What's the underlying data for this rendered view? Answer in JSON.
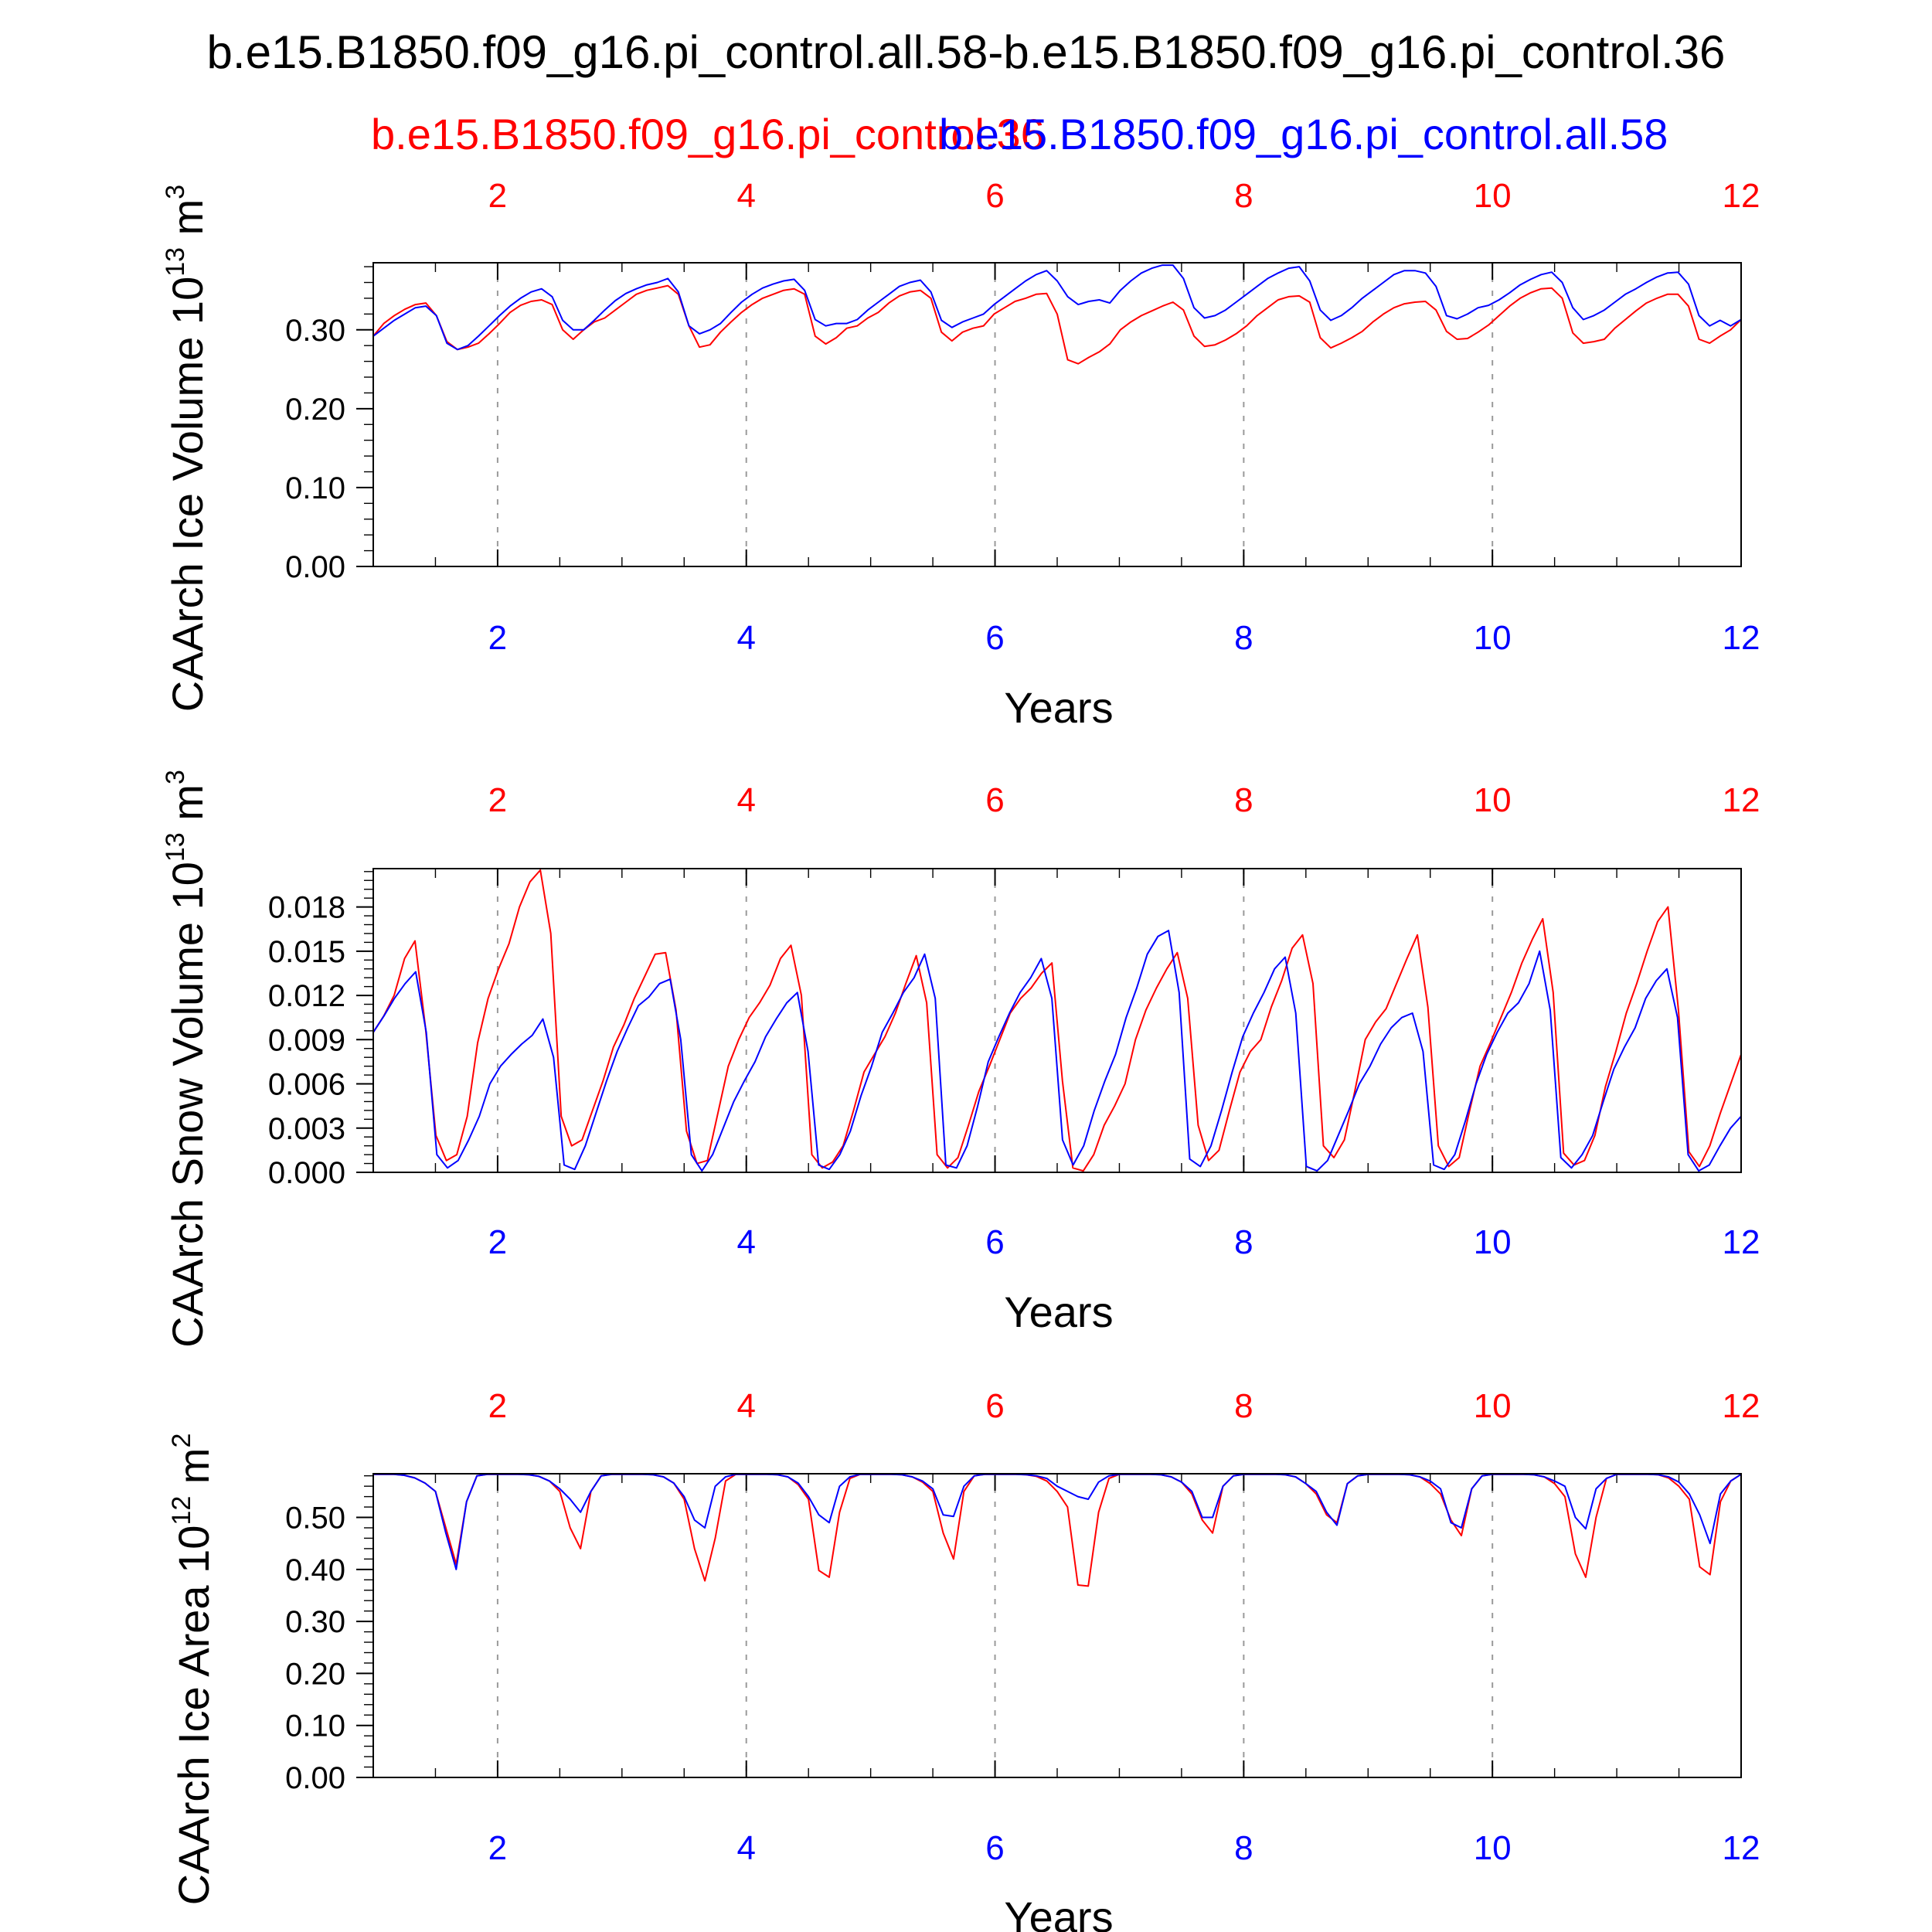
{
  "figure": {
    "title": "b.e15.B1850.f09_g16.pi_control.all.58-b.e15.B1850.f09_g16.pi_control.36",
    "legend": [
      {
        "name": "b.e15.B1850.f09_g16.pi_control.36",
        "color": "#ff0000"
      },
      {
        "name": "b.e15.B1850.f09_g16.pi_control.all.58",
        "color": "#0000ff"
      }
    ]
  },
  "chart_data": [
    {
      "type": "line",
      "xlabel": "Years",
      "ylabel": "CAArch Ice Volume",
      "yunit": {
        "prefix": "10",
        "exp": "13",
        "unit": "m",
        "unit_exp": "3"
      },
      "xlim": [
        1,
        12
      ],
      "ylim": [
        0,
        0.385
      ],
      "x_ticks": [
        2,
        4,
        6,
        8,
        10,
        12
      ],
      "x_tick_labels": [
        "2",
        "4",
        "6",
        "8",
        "10",
        "12"
      ],
      "y_ticks": [
        0,
        0.1,
        0.2,
        0.3
      ],
      "y_tick_labels": [
        "0.00",
        "0.10",
        "0.20",
        "0.30"
      ],
      "grid": "x dashed",
      "series": [
        {
          "name": "b.e15.B1850.f09_g16.pi_control.36",
          "color": "#ff0000",
          "values": [
            0.292,
            0.308,
            0.318,
            0.326,
            0.332,
            0.334,
            0.318,
            0.285,
            0.275,
            0.278,
            0.283,
            0.295,
            0.308,
            0.322,
            0.331,
            0.336,
            0.338,
            0.332,
            0.3,
            0.288,
            0.3,
            0.31,
            0.315,
            0.325,
            0.335,
            0.345,
            0.35,
            0.353,
            0.356,
            0.345,
            0.305,
            0.278,
            0.281,
            0.297,
            0.31,
            0.322,
            0.332,
            0.34,
            0.345,
            0.35,
            0.352,
            0.345,
            0.292,
            0.282,
            0.29,
            0.302,
            0.305,
            0.315,
            0.322,
            0.334,
            0.343,
            0.348,
            0.35,
            0.34,
            0.297,
            0.286,
            0.297,
            0.302,
            0.305,
            0.32,
            0.328,
            0.336,
            0.34,
            0.345,
            0.346,
            0.32,
            0.262,
            0.257,
            0.265,
            0.272,
            0.282,
            0.3,
            0.31,
            0.318,
            0.324,
            0.33,
            0.335,
            0.325,
            0.292,
            0.279,
            0.281,
            0.287,
            0.295,
            0.305,
            0.318,
            0.328,
            0.338,
            0.342,
            0.343,
            0.335,
            0.29,
            0.277,
            0.283,
            0.29,
            0.298,
            0.31,
            0.32,
            0.328,
            0.333,
            0.335,
            0.336,
            0.325,
            0.298,
            0.288,
            0.289,
            0.297,
            0.306,
            0.318,
            0.33,
            0.34,
            0.347,
            0.352,
            0.353,
            0.34,
            0.296,
            0.283,
            0.285,
            0.288,
            0.302,
            0.313,
            0.324,
            0.334,
            0.34,
            0.345,
            0.345,
            0.33,
            0.288,
            0.283,
            0.292,
            0.3,
            0.313
          ]
        },
        {
          "name": "b.e15.B1850.f09_g16.pi_control.all.58",
          "color": "#0000ff",
          "values": [
            0.292,
            0.302,
            0.312,
            0.32,
            0.328,
            0.33,
            0.318,
            0.283,
            0.275,
            0.28,
            0.292,
            0.305,
            0.318,
            0.33,
            0.34,
            0.348,
            0.352,
            0.342,
            0.312,
            0.3,
            0.3,
            0.312,
            0.325,
            0.337,
            0.346,
            0.352,
            0.357,
            0.36,
            0.365,
            0.348,
            0.305,
            0.295,
            0.3,
            0.308,
            0.322,
            0.335,
            0.345,
            0.353,
            0.358,
            0.362,
            0.364,
            0.35,
            0.313,
            0.305,
            0.308,
            0.308,
            0.313,
            0.325,
            0.335,
            0.345,
            0.355,
            0.36,
            0.363,
            0.348,
            0.312,
            0.303,
            0.31,
            0.315,
            0.32,
            0.332,
            0.342,
            0.352,
            0.362,
            0.37,
            0.375,
            0.362,
            0.342,
            0.332,
            0.336,
            0.338,
            0.334,
            0.35,
            0.362,
            0.372,
            0.378,
            0.382,
            0.382,
            0.365,
            0.328,
            0.315,
            0.318,
            0.325,
            0.335,
            0.345,
            0.355,
            0.365,
            0.372,
            0.378,
            0.38,
            0.362,
            0.325,
            0.312,
            0.318,
            0.328,
            0.34,
            0.35,
            0.36,
            0.37,
            0.375,
            0.375,
            0.372,
            0.355,
            0.318,
            0.314,
            0.32,
            0.328,
            0.331,
            0.338,
            0.347,
            0.357,
            0.364,
            0.37,
            0.373,
            0.36,
            0.328,
            0.313,
            0.318,
            0.325,
            0.335,
            0.345,
            0.352,
            0.36,
            0.367,
            0.372,
            0.373,
            0.358,
            0.318,
            0.305,
            0.312,
            0.305,
            0.313
          ]
        }
      ]
    },
    {
      "type": "line",
      "xlabel": "Years",
      "ylabel": "CAArch Snow Volume",
      "yunit": {
        "prefix": "10",
        "exp": "13",
        "unit": "m",
        "unit_exp": "3"
      },
      "xlim": [
        1,
        12
      ],
      "ylim": [
        0,
        0.0206
      ],
      "x_ticks": [
        2,
        4,
        6,
        8,
        10,
        12
      ],
      "x_tick_labels": [
        "2",
        "4",
        "6",
        "8",
        "10",
        "12"
      ],
      "y_ticks": [
        0,
        0.003,
        0.006,
        0.009,
        0.012,
        0.015,
        0.018
      ],
      "y_tick_labels": [
        "0.000",
        "0.003",
        "0.006",
        "0.009",
        "0.012",
        "0.015",
        "0.018"
      ],
      "grid": "x dashed",
      "series": [
        {
          "name": "b.e15.B1850.f09_g16.pi_control.36",
          "color": "#ff0000",
          "values": [
            0.0095,
            0.0106,
            0.012,
            0.0145,
            0.0157,
            0.0098,
            0.0025,
            0.0008,
            0.0012,
            0.0038,
            0.0088,
            0.0118,
            0.0138,
            0.0155,
            0.018,
            0.0197,
            0.0205,
            0.0162,
            0.0038,
            0.0018,
            0.0022,
            0.0042,
            0.0062,
            0.0085,
            0.01,
            0.0118,
            0.0133,
            0.0148,
            0.0149,
            0.011,
            0.0028,
            0.0006,
            0.0008,
            0.004,
            0.0072,
            0.009,
            0.0105,
            0.0115,
            0.0127,
            0.0145,
            0.0154,
            0.012,
            0.0012,
            0.0003,
            0.0007,
            0.0018,
            0.0042,
            0.0068,
            0.008,
            0.0092,
            0.0108,
            0.0128,
            0.0147,
            0.0115,
            0.0012,
            0.0003,
            0.001,
            0.0032,
            0.0055,
            0.0072,
            0.009,
            0.0108,
            0.0118,
            0.0125,
            0.0135,
            0.0142,
            0.0062,
            0.0003,
            0.0001,
            0.0012,
            0.0032,
            0.0045,
            0.006,
            0.009,
            0.011,
            0.0125,
            0.0138,
            0.0149,
            0.0118,
            0.0032,
            0.0008,
            0.0015,
            0.0042,
            0.0068,
            0.0082,
            0.009,
            0.0112,
            0.013,
            0.0152,
            0.0161,
            0.0128,
            0.0018,
            0.001,
            0.0022,
            0.0055,
            0.009,
            0.0102,
            0.0111,
            0.0128,
            0.0145,
            0.0161,
            0.0112,
            0.0018,
            0.0004,
            0.001,
            0.0042,
            0.0072,
            0.0088,
            0.0105,
            0.0122,
            0.0142,
            0.0158,
            0.0172,
            0.0122,
            0.0013,
            0.0005,
            0.0008,
            0.0025,
            0.0058,
            0.0082,
            0.0108,
            0.0128,
            0.015,
            0.017,
            0.018,
            0.011,
            0.0014,
            0.0004,
            0.0018,
            0.004,
            0.006,
            0.008
          ]
        },
        {
          "name": "b.e15.B1850.f09_g16.pi_control.all.58",
          "color": "#0000ff",
          "values": [
            0.0095,
            0.0106,
            0.0118,
            0.0128,
            0.0136,
            0.0095,
            0.0012,
            0.0003,
            0.0008,
            0.0022,
            0.0038,
            0.006,
            0.0072,
            0.008,
            0.0087,
            0.0093,
            0.0104,
            0.0078,
            0.0005,
            0.0002,
            0.0018,
            0.004,
            0.0062,
            0.0082,
            0.0098,
            0.0113,
            0.0119,
            0.0128,
            0.0131,
            0.009,
            0.0012,
            0.0001,
            0.0012,
            0.003,
            0.0048,
            0.0062,
            0.0075,
            0.0092,
            0.0104,
            0.0115,
            0.0122,
            0.0082,
            0.0005,
            0.0002,
            0.0012,
            0.0028,
            0.0052,
            0.0072,
            0.0095,
            0.0108,
            0.0122,
            0.0132,
            0.0148,
            0.0118,
            0.0005,
            0.0003,
            0.0018,
            0.0045,
            0.0075,
            0.0092,
            0.0108,
            0.0122,
            0.0132,
            0.0145,
            0.0118,
            0.0022,
            0.0005,
            0.0018,
            0.0042,
            0.0062,
            0.008,
            0.0105,
            0.0125,
            0.0148,
            0.016,
            0.0164,
            0.0122,
            0.0009,
            0.0004,
            0.0018,
            0.0042,
            0.0068,
            0.0092,
            0.0108,
            0.0122,
            0.0138,
            0.0146,
            0.0108,
            0.0004,
            0.0001,
            0.0008,
            0.0025,
            0.0042,
            0.006,
            0.0072,
            0.0087,
            0.0098,
            0.0105,
            0.0108,
            0.0082,
            0.0005,
            0.0002,
            0.0012,
            0.0035,
            0.006,
            0.008,
            0.0095,
            0.0108,
            0.0115,
            0.0128,
            0.015,
            0.011,
            0.001,
            0.0003,
            0.0012,
            0.0025,
            0.0048,
            0.007,
            0.0085,
            0.0098,
            0.0118,
            0.013,
            0.0138,
            0.0105,
            0.0012,
            0.0001,
            0.0005,
            0.0018,
            0.003,
            0.0038
          ]
        }
      ]
    },
    {
      "type": "line",
      "xlabel": "Years",
      "ylabel": "CAArch Ice Area",
      "yunit": {
        "prefix": "10",
        "exp": "12",
        "unit": "m",
        "unit_exp": "2"
      },
      "xlim": [
        1,
        12
      ],
      "ylim": [
        0,
        0.584
      ],
      "x_ticks": [
        2,
        4,
        6,
        8,
        10,
        12
      ],
      "x_tick_labels": [
        "2",
        "4",
        "6",
        "8",
        "10",
        "12"
      ],
      "y_ticks": [
        0,
        0.1,
        0.2,
        0.3,
        0.4,
        0.5
      ],
      "y_tick_labels": [
        "0.00",
        "0.10",
        "0.20",
        "0.30",
        "0.40",
        "0.50"
      ],
      "grid": "x dashed",
      "series": [
        {
          "name": "b.e15.B1850.f09_g16.pi_control.36",
          "color": "#ff0000",
          "values": [
            0.583,
            0.583,
            0.583,
            0.581,
            0.576,
            0.566,
            0.55,
            0.48,
            0.41,
            0.53,
            0.58,
            0.583,
            0.583,
            0.583,
            0.583,
            0.582,
            0.579,
            0.57,
            0.55,
            0.48,
            0.44,
            0.55,
            0.58,
            0.583,
            0.583,
            0.583,
            0.583,
            0.582,
            0.578,
            0.566,
            0.535,
            0.44,
            0.378,
            0.46,
            0.57,
            0.583,
            0.583,
            0.583,
            0.583,
            0.582,
            0.578,
            0.563,
            0.535,
            0.398,
            0.385,
            0.51,
            0.575,
            0.583,
            0.583,
            0.583,
            0.583,
            0.582,
            0.578,
            0.568,
            0.55,
            0.47,
            0.42,
            0.55,
            0.58,
            0.583,
            0.583,
            0.583,
            0.583,
            0.582,
            0.579,
            0.57,
            0.55,
            0.52,
            0.37,
            0.368,
            0.51,
            0.575,
            0.583,
            0.583,
            0.583,
            0.583,
            0.582,
            0.578,
            0.568,
            0.545,
            0.495,
            0.47,
            0.56,
            0.58,
            0.583,
            0.583,
            0.583,
            0.583,
            0.582,
            0.578,
            0.565,
            0.545,
            0.505,
            0.49,
            0.565,
            0.58,
            0.583,
            0.583,
            0.583,
            0.583,
            0.582,
            0.578,
            0.565,
            0.545,
            0.495,
            0.465,
            0.555,
            0.58,
            0.583,
            0.583,
            0.583,
            0.583,
            0.582,
            0.578,
            0.565,
            0.54,
            0.43,
            0.385,
            0.5,
            0.575,
            0.583,
            0.583,
            0.583,
            0.583,
            0.582,
            0.576,
            0.56,
            0.535,
            0.405,
            0.39,
            0.53,
            0.57,
            0.583
          ]
        },
        {
          "name": "b.e15.B1850.f09_g16.pi_control.all.58",
          "color": "#0000ff",
          "values": [
            0.583,
            0.583,
            0.583,
            0.581,
            0.576,
            0.566,
            0.55,
            0.47,
            0.4,
            0.53,
            0.58,
            0.583,
            0.583,
            0.583,
            0.583,
            0.582,
            0.579,
            0.57,
            0.555,
            0.535,
            0.51,
            0.55,
            0.58,
            0.583,
            0.583,
            0.583,
            0.583,
            0.582,
            0.578,
            0.566,
            0.54,
            0.495,
            0.48,
            0.56,
            0.578,
            0.583,
            0.583,
            0.583,
            0.583,
            0.582,
            0.578,
            0.566,
            0.54,
            0.505,
            0.49,
            0.56,
            0.578,
            0.583,
            0.583,
            0.583,
            0.583,
            0.582,
            0.578,
            0.57,
            0.555,
            0.505,
            0.502,
            0.56,
            0.58,
            0.583,
            0.583,
            0.583,
            0.583,
            0.582,
            0.58,
            0.575,
            0.56,
            0.55,
            0.54,
            0.535,
            0.568,
            0.58,
            0.583,
            0.583,
            0.583,
            0.583,
            0.582,
            0.578,
            0.568,
            0.55,
            0.5,
            0.5,
            0.56,
            0.58,
            0.583,
            0.583,
            0.583,
            0.583,
            0.582,
            0.578,
            0.565,
            0.55,
            0.51,
            0.485,
            0.565,
            0.58,
            0.583,
            0.583,
            0.583,
            0.583,
            0.582,
            0.578,
            0.57,
            0.555,
            0.49,
            0.48,
            0.555,
            0.58,
            0.583,
            0.583,
            0.583,
            0.583,
            0.582,
            0.578,
            0.57,
            0.56,
            0.5,
            0.478,
            0.555,
            0.575,
            0.583,
            0.583,
            0.583,
            0.583,
            0.582,
            0.578,
            0.568,
            0.545,
            0.505,
            0.45,
            0.545,
            0.57,
            0.583
          ]
        }
      ]
    }
  ]
}
